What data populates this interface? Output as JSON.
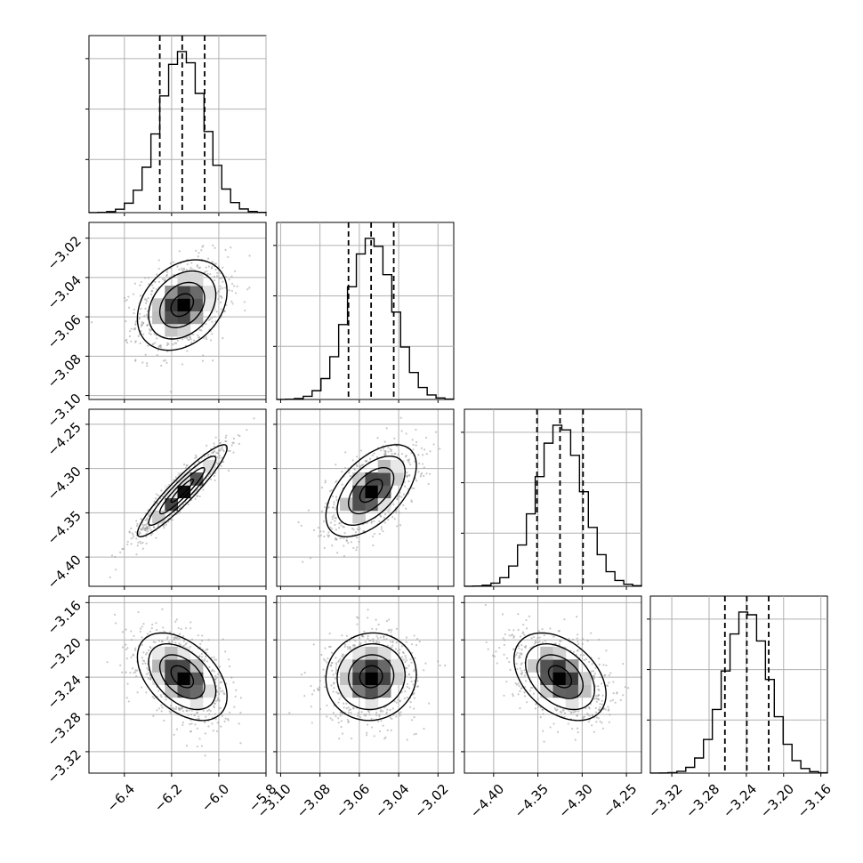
{
  "chart_data": {
    "type": "corner",
    "parameters": [
      {
        "lim": [
          -6.55,
          -5.8
        ],
        "ticks": [
          -6.4,
          -6.2,
          -6.0,
          -5.8
        ],
        "tick_labels": [
          "−6.4",
          "−6.2",
          "−6.0",
          "−5.8"
        ],
        "mean": -6.155,
        "sd": 0.095,
        "quantiles": [
          -6.25,
          -6.155,
          -6.06
        ]
      },
      {
        "lim": [
          -3.102,
          -3.012
        ],
        "ticks": [
          -3.1,
          -3.08,
          -3.06,
          -3.04,
          -3.02
        ],
        "tick_labels": [
          "−3.10",
          "−3.08",
          "−3.06",
          "−3.04",
          "−3.02"
        ],
        "mean": -3.054,
        "sd": 0.0115,
        "quantiles": [
          -3.0655,
          -3.054,
          -3.0425
        ]
      },
      {
        "lim": [
          -4.433,
          -4.233
        ],
        "ticks": [
          -4.4,
          -4.35,
          -4.3,
          -4.25
        ],
        "tick_labels": [
          "−4.40",
          "−4.35",
          "−4.30",
          "−4.25"
        ],
        "mean": -4.325,
        "sd": 0.026,
        "quantiles": [
          -4.351,
          -4.325,
          -4.299
        ]
      },
      {
        "lim": [
          -3.343,
          -3.153
        ],
        "ticks": [
          -3.32,
          -3.28,
          -3.24,
          -3.2,
          -3.16
        ],
        "tick_labels": [
          "−3.32",
          "−3.28",
          "−3.24",
          "−3.20",
          "−3.16"
        ],
        "mean": -3.2395,
        "sd": 0.0235,
        "quantiles": [
          -3.263,
          -3.2395,
          -3.216
        ]
      }
    ],
    "correlations": [
      {
        "i": 1,
        "j": 0,
        "rho": 0.3
      },
      {
        "i": 2,
        "j": 0,
        "rho": 0.93
      },
      {
        "i": 2,
        "j": 1,
        "rho": 0.55
      },
      {
        "i": 3,
        "j": 0,
        "rho": -0.45
      },
      {
        "i": 3,
        "j": 1,
        "rho": 0.05
      },
      {
        "i": 3,
        "j": 2,
        "rho": -0.4
      }
    ],
    "histogram_bins": 20,
    "contour_levels_sigma": [
      0.5,
      1.0,
      1.5,
      2.0
    ],
    "grid": true,
    "colors": {
      "hist": "#000000",
      "scatter": "#9a9a9a",
      "contour": "#000000",
      "grid": "#b0b0b0"
    }
  }
}
